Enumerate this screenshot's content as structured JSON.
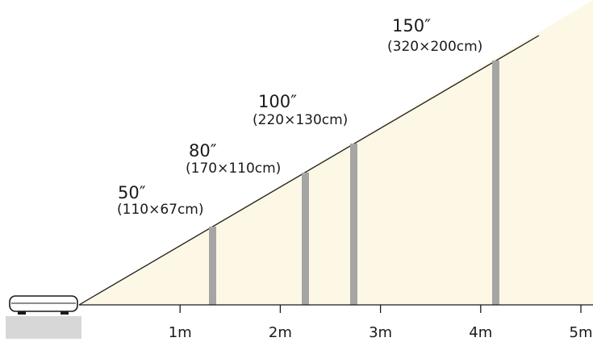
{
  "colors": {
    "beam_fill": "#fdf8e6",
    "screen_bar": "#a5a5a5",
    "line": "#1a1a1a",
    "stand": "#d7d7d7"
  },
  "icons": {
    "projector": "projector-icon"
  },
  "screens": [
    {
      "size": "50″",
      "dimensions": "(110×67cm)",
      "distance_m": 1.3
    },
    {
      "size": "80″",
      "dimensions": "(170×110cm)",
      "distance_m": 2.2
    },
    {
      "size": "100″",
      "dimensions": "(220×130cm)",
      "distance_m": 2.75
    },
    {
      "size": "150″",
      "dimensions": "(320×200cm)",
      "distance_m": 4.25
    }
  ],
  "axis": {
    "ticks": [
      {
        "value": 1,
        "label": "1m"
      },
      {
        "value": 2,
        "label": "2m"
      },
      {
        "value": 3,
        "label": "3m"
      },
      {
        "value": 4,
        "label": "4m"
      },
      {
        "value": 5,
        "label": "5m"
      }
    ]
  }
}
